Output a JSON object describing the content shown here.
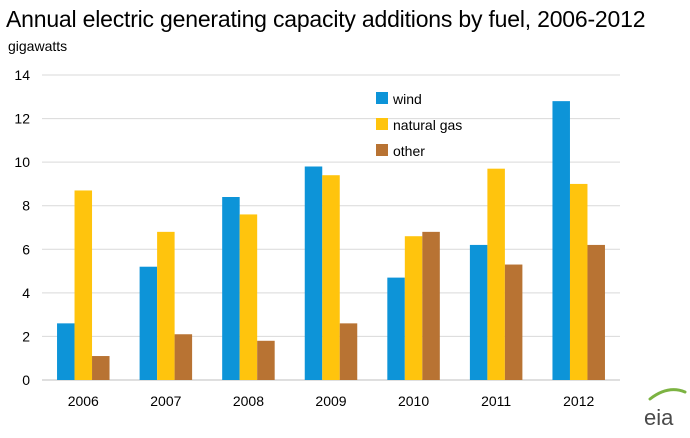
{
  "chart_data": {
    "type": "bar",
    "title": "Annual electric generating capacity additions by fuel, 2006-2012",
    "ylabel": "gigawatts",
    "xlabel": "",
    "categories": [
      "2006",
      "2007",
      "2008",
      "2009",
      "2010",
      "2011",
      "2012"
    ],
    "series": [
      {
        "name": "wind",
        "color": "#0d94d8",
        "values": [
          2.6,
          5.2,
          8.4,
          9.8,
          4.7,
          6.2,
          12.8
        ]
      },
      {
        "name": "natural gas",
        "color": "#ffc40d",
        "values": [
          8.7,
          6.8,
          7.6,
          9.4,
          6.6,
          9.7,
          9.0
        ]
      },
      {
        "name": "other",
        "color": "#b87333",
        "values": [
          1.1,
          2.1,
          1.8,
          2.6,
          6.8,
          5.3,
          6.2
        ]
      }
    ],
    "ylim": [
      0,
      14
    ],
    "yticks": [
      0,
      2,
      4,
      6,
      8,
      10,
      12,
      14
    ],
    "grid": true,
    "legend_position": "top-center"
  },
  "logo": {
    "text": "eia",
    "icon": "eia-logo-icon"
  }
}
